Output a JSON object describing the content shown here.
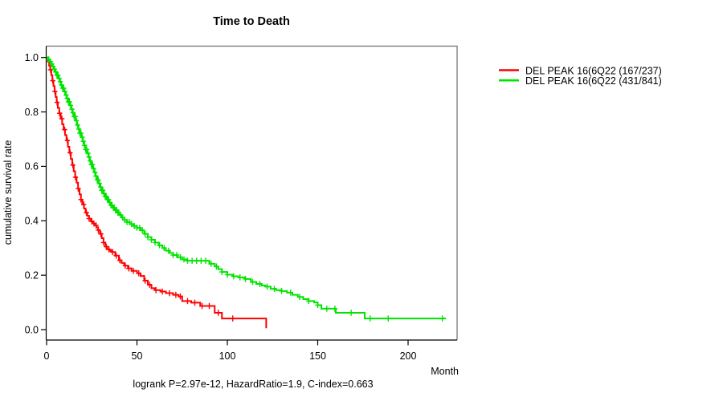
{
  "window": {
    "background": "#ffffff"
  },
  "chart_data": {
    "type": "line",
    "subtype": "kaplan-meier-step-survival",
    "title": "Time to Death",
    "xlabel": "Month",
    "ylabel": "cumulative survival rate",
    "annotation": "logrank P=2.97e-12, HazardRatio=1.9, C-index=0.663",
    "xlim": [
      0,
      227
    ],
    "ylim": [
      0,
      1
    ],
    "grid": false,
    "legend_position": "right-outside",
    "xticks": {
      "values": [
        0,
        50,
        100,
        150,
        200
      ],
      "labels": [
        "0",
        "50",
        "100",
        "150",
        "200"
      ]
    },
    "yticks": {
      "values": [
        0,
        0.2,
        0.4,
        0.6,
        0.8,
        1.0
      ],
      "labels": [
        "0.0",
        "0.2",
        "0.4",
        "0.6",
        "0.8",
        "1.0"
      ]
    },
    "series": [
      {
        "name": "DEL PEAK 16(6Q22 (167/237)",
        "color": "#ff0000",
        "end_month": 121.5,
        "points": [
          [
            0,
            1.0
          ],
          [
            0.7,
            0.985
          ],
          [
            1.4,
            0.97
          ],
          [
            2,
            0.955
          ],
          [
            2.6,
            0.935
          ],
          [
            3.2,
            0.915
          ],
          [
            3.8,
            0.895
          ],
          [
            4.4,
            0.875
          ],
          [
            5,
            0.855
          ],
          [
            5.6,
            0.835
          ],
          [
            6.2,
            0.815
          ],
          [
            7,
            0.795
          ],
          [
            7.8,
            0.775
          ],
          [
            8.6,
            0.755
          ],
          [
            9.4,
            0.735
          ],
          [
            10.2,
            0.715
          ],
          [
            11,
            0.695
          ],
          [
            11.8,
            0.672
          ],
          [
            12.6,
            0.65
          ],
          [
            13.4,
            0.627
          ],
          [
            14.2,
            0.605
          ],
          [
            15,
            0.582
          ],
          [
            15.8,
            0.56
          ],
          [
            16.6,
            0.54
          ],
          [
            17.4,
            0.518
          ],
          [
            18.2,
            0.497
          ],
          [
            19,
            0.478
          ],
          [
            19.8,
            0.46
          ],
          [
            20.7,
            0.445
          ],
          [
            21.6,
            0.43
          ],
          [
            22.5,
            0.418
          ],
          [
            23.5,
            0.408
          ],
          [
            24.5,
            0.398
          ],
          [
            25.5,
            0.39
          ],
          [
            26.5,
            0.383
          ],
          [
            27.5,
            0.376
          ],
          [
            28.5,
            0.366
          ],
          [
            29.5,
            0.352
          ],
          [
            30.5,
            0.336
          ],
          [
            31.5,
            0.32
          ],
          [
            32.5,
            0.305
          ],
          [
            33.5,
            0.295
          ],
          [
            34.8,
            0.29
          ],
          [
            36.3,
            0.285
          ],
          [
            38,
            0.272
          ],
          [
            40,
            0.255
          ],
          [
            41.5,
            0.245
          ],
          [
            43,
            0.235
          ],
          [
            45,
            0.225
          ],
          [
            47,
            0.216
          ],
          [
            50,
            0.207
          ],
          [
            52,
            0.197
          ],
          [
            54,
            0.18
          ],
          [
            56,
            0.165
          ],
          [
            58,
            0.152
          ],
          [
            60,
            0.145
          ],
          [
            63,
            0.14
          ],
          [
            66,
            0.134
          ],
          [
            70,
            0.128
          ],
          [
            73,
            0.122
          ],
          [
            75,
            0.105
          ],
          [
            80,
            0.099
          ],
          [
            85,
            0.087
          ],
          [
            93,
            0.062
          ],
          [
            97,
            0.041
          ],
          [
            121.5,
            0.005
          ]
        ],
        "censor_months": [
          2.2,
          3.4,
          4.6,
          5.8,
          7.2,
          8.5,
          10,
          11.5,
          13,
          14.5,
          16,
          17.5,
          19,
          20.5,
          22,
          23.5,
          25,
          26.2,
          27.4,
          28.6,
          30,
          31.5,
          33,
          34.5,
          36.5,
          38.5,
          40.5,
          43.5,
          45.5,
          48,
          51,
          54.5,
          57,
          60.5,
          64,
          68,
          71.5,
          74,
          78,
          82,
          86,
          90,
          95,
          103
        ]
      },
      {
        "name": "DEL PEAK 16(6Q22 (431/841)",
        "color": "#00e400",
        "end_month": 221,
        "points": [
          [
            0,
            1.0
          ],
          [
            0.8,
            0.993
          ],
          [
            1.6,
            0.985
          ],
          [
            2.4,
            0.976
          ],
          [
            3.2,
            0.967
          ],
          [
            4,
            0.957
          ],
          [
            4.8,
            0.947
          ],
          [
            5.6,
            0.935
          ],
          [
            6.4,
            0.923
          ],
          [
            7.2,
            0.911
          ],
          [
            8,
            0.899
          ],
          [
            8.8,
            0.887
          ],
          [
            9.6,
            0.875
          ],
          [
            10.4,
            0.862
          ],
          [
            11.2,
            0.85
          ],
          [
            12,
            0.837
          ],
          [
            12.8,
            0.824
          ],
          [
            13.6,
            0.81
          ],
          [
            14.4,
            0.797
          ],
          [
            15.2,
            0.783
          ],
          [
            16,
            0.768
          ],
          [
            16.8,
            0.752
          ],
          [
            17.6,
            0.737
          ],
          [
            18.4,
            0.722
          ],
          [
            19.2,
            0.707
          ],
          [
            20,
            0.692
          ],
          [
            20.8,
            0.677
          ],
          [
            21.6,
            0.662
          ],
          [
            22.4,
            0.648
          ],
          [
            23.2,
            0.634
          ],
          [
            24,
            0.62
          ],
          [
            24.8,
            0.606
          ],
          [
            25.6,
            0.592
          ],
          [
            26.4,
            0.578
          ],
          [
            27.2,
            0.564
          ],
          [
            28,
            0.55
          ],
          [
            28.8,
            0.537
          ],
          [
            29.6,
            0.524
          ],
          [
            30.5,
            0.512
          ],
          [
            31.4,
            0.5
          ],
          [
            32.4,
            0.489
          ],
          [
            33.4,
            0.478
          ],
          [
            34.4,
            0.467
          ],
          [
            35.5,
            0.457
          ],
          [
            36.6,
            0.448
          ],
          [
            37.8,
            0.439
          ],
          [
            39,
            0.43
          ],
          [
            40.2,
            0.421
          ],
          [
            41.5,
            0.412
          ],
          [
            43,
            0.403
          ],
          [
            44.5,
            0.395
          ],
          [
            46,
            0.388
          ],
          [
            48,
            0.381
          ],
          [
            50,
            0.374
          ],
          [
            52,
            0.365
          ],
          [
            54,
            0.352
          ],
          [
            56,
            0.34
          ],
          [
            58,
            0.33
          ],
          [
            60,
            0.32
          ],
          [
            62,
            0.31
          ],
          [
            64,
            0.3
          ],
          [
            66,
            0.29
          ],
          [
            68,
            0.282
          ],
          [
            70,
            0.274
          ],
          [
            72.5,
            0.266
          ],
          [
            75,
            0.258
          ],
          [
            77.5,
            0.253
          ],
          [
            90,
            0.242
          ],
          [
            93,
            0.232
          ],
          [
            95,
            0.222
          ],
          [
            97,
            0.212
          ],
          [
            100,
            0.202
          ],
          [
            103,
            0.196
          ],
          [
            106,
            0.192
          ],
          [
            110,
            0.186
          ],
          [
            113,
            0.175
          ],
          [
            116,
            0.168
          ],
          [
            119,
            0.162
          ],
          [
            121,
            0.158
          ],
          [
            124,
            0.15
          ],
          [
            127,
            0.145
          ],
          [
            130,
            0.142
          ],
          [
            133,
            0.136
          ],
          [
            136,
            0.128
          ],
          [
            139,
            0.12
          ],
          [
            142,
            0.112
          ],
          [
            145,
            0.105
          ],
          [
            148,
            0.1
          ],
          [
            150,
            0.09
          ],
          [
            152,
            0.077
          ],
          [
            160,
            0.062
          ],
          [
            176,
            0.041
          ]
        ],
        "censor_months": [
          1.2,
          2.1,
          2.9,
          3.6,
          4.3,
          5,
          5.7,
          6.3,
          7,
          7.6,
          8.2,
          8.9,
          9.5,
          10.1,
          10.8,
          11.4,
          12,
          12.7,
          13.3,
          14,
          14.6,
          15.2,
          15.9,
          16.5,
          17.1,
          17.8,
          18.4,
          19,
          19.7,
          20.3,
          21,
          21.6,
          22.2,
          22.9,
          23.5,
          24.1,
          24.8,
          25.4,
          26,
          26.7,
          27.3,
          28,
          28.6,
          29.2,
          29.9,
          30.5,
          31.1,
          31.8,
          32.4,
          33,
          33.7,
          34.3,
          35,
          35.6,
          36.2,
          36.9,
          37.5,
          38.1,
          38.8,
          39.4,
          40,
          41,
          42,
          43.2,
          44.5,
          45.8,
          47,
          48.5,
          50,
          51.5,
          53,
          54.5,
          56,
          58,
          60,
          62.5,
          65,
          67.5,
          70,
          72,
          74,
          76,
          78,
          80.5,
          83,
          85.5,
          88,
          91,
          94,
          97,
          100,
          103.5,
          107,
          110,
          114,
          118,
          122,
          126,
          130,
          135,
          140,
          145,
          150,
          155,
          159.5,
          168.5,
          179,
          189,
          219
        ]
      }
    ]
  }
}
